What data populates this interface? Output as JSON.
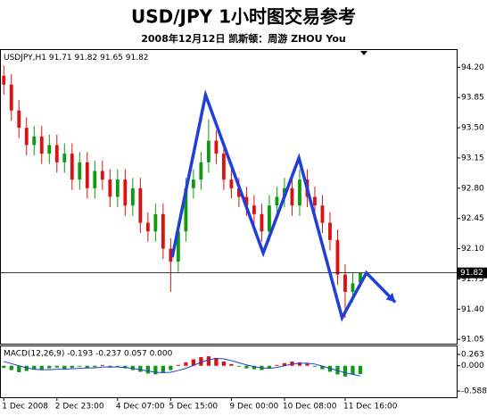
{
  "chart_data": {
    "type": "candlestick",
    "title": "USD/JPY 1小时图交易参考",
    "subtitle": "2008年12月12日  凯斯顿：周游 ZHOU You",
    "symbol": "USDJPY,H1",
    "open": [
      94.1,
      94.0,
      93.7,
      93.5,
      93.3,
      93.4,
      93.2,
      93.3,
      93.1,
      93.2,
      92.9,
      93.1,
      92.8,
      93.0,
      92.9,
      92.7,
      92.9,
      92.6,
      92.8,
      92.4,
      92.3,
      92.5,
      92.1,
      91.95,
      92.3,
      92.8,
      92.9,
      93.1,
      93.35,
      93.2,
      92.9,
      92.8,
      92.7,
      92.6,
      92.5,
      92.3,
      92.6,
      92.7,
      92.8,
      92.6,
      92.9,
      92.7,
      92.6,
      92.4,
      92.2,
      91.8,
      91.6,
      91.71
    ],
    "high": [
      94.22,
      94.12,
      93.82,
      93.62,
      93.52,
      93.52,
      93.42,
      93.42,
      93.32,
      93.32,
      93.22,
      93.22,
      93.12,
      93.12,
      93.02,
      93.02,
      93.02,
      92.92,
      92.92,
      92.52,
      92.62,
      92.62,
      92.22,
      92.42,
      92.92,
      93.02,
      93.22,
      93.6,
      93.47,
      93.32,
      93.02,
      92.92,
      92.82,
      92.72,
      92.62,
      92.72,
      92.82,
      92.92,
      92.92,
      93.02,
      93.02,
      92.82,
      92.72,
      92.52,
      92.32,
      91.92,
      91.82,
      91.82
    ],
    "low": [
      93.88,
      93.58,
      93.38,
      93.18,
      93.18,
      93.08,
      93.08,
      92.98,
      92.98,
      92.78,
      92.78,
      92.68,
      92.68,
      92.78,
      92.58,
      92.58,
      92.48,
      92.48,
      92.28,
      92.18,
      92.18,
      91.98,
      91.6,
      91.83,
      92.18,
      92.68,
      92.78,
      92.98,
      93.08,
      92.78,
      92.68,
      92.58,
      92.48,
      92.38,
      92.18,
      92.18,
      92.48,
      92.58,
      92.48,
      92.48,
      92.58,
      92.48,
      92.28,
      92.08,
      91.68,
      91.3,
      91.48,
      91.65
    ],
    "close": [
      94.0,
      93.7,
      93.5,
      93.3,
      93.4,
      93.2,
      93.3,
      93.1,
      93.2,
      92.9,
      93.1,
      92.8,
      93.0,
      92.9,
      92.7,
      92.9,
      92.6,
      92.8,
      92.4,
      92.3,
      92.5,
      92.1,
      91.95,
      92.3,
      92.8,
      92.9,
      93.1,
      93.35,
      93.2,
      92.9,
      92.8,
      92.7,
      92.6,
      92.5,
      92.3,
      92.6,
      92.7,
      92.8,
      92.6,
      92.9,
      92.7,
      92.6,
      92.4,
      92.2,
      91.8,
      91.6,
      91.7,
      91.82
    ],
    "up_color": "#119911",
    "down_color": "#dd1111",
    "xlim": [
      -0.5,
      59.7
    ],
    "ylim": [
      91.0,
      94.39
    ],
    "yticks": [
      {
        "value": 94.2,
        "label": "94.20"
      },
      93.85,
      {
        "value": 93.5,
        "label": "93.50"
      },
      93.15,
      {
        "value": 92.8,
        "label": "92.80"
      },
      92.45,
      {
        "value": 92.1,
        "label": "92.10"
      },
      91.75,
      {
        "value": 91.4,
        "label": "91.40"
      },
      91.05
    ],
    "xticks": [
      {
        "value": 0,
        "label": "1 Dec 2008"
      },
      {
        "value": 7,
        "label": "2 Dec 23:00"
      },
      {
        "value": 15,
        "label": "4 Dec 07:00"
      },
      {
        "value": 22,
        "label": "5 Dec 15:00"
      },
      {
        "value": 30,
        "label": "9 Dec 00:00"
      },
      {
        "value": 37,
        "label": "10 Dec 08:00"
      },
      {
        "value": 45,
        "label": "11 Dec 16:00"
      }
    ],
    "zigzag": {
      "color": "#1f3fd8",
      "x": [
        22.2,
        26.6,
        34.2,
        38.9,
        44.6,
        47.8,
        51.6
      ],
      "values": [
        92.0,
        93.88,
        92.05,
        93.15,
        91.3,
        91.82,
        91.48
      ]
    },
    "macd": {
      "label": "MACD(12,26,9) -0.193 -0.237 0.057 0.000",
      "ylim": [
        -0.73,
        0.45
      ],
      "yticks": [
        0.263,
        {
          "value": 0,
          "label": "0.000"
        },
        -0.588
      ],
      "pos_color": "#dd1111",
      "neg_color": "#119911",
      "signal_color": "#1f3fd8",
      "histogram": [
        -0.05,
        -0.1,
        -0.15,
        -0.12,
        -0.08,
        -0.1,
        -0.06,
        -0.04,
        -0.08,
        -0.05,
        -0.02,
        -0.06,
        -0.03,
        0.02,
        -0.04,
        -0.02,
        -0.06,
        -0.1,
        -0.14,
        -0.18,
        -0.2,
        -0.15,
        -0.1,
        0.02,
        0.08,
        0.15,
        0.2,
        0.22,
        0.18,
        0.1,
        0.04,
        -0.02,
        -0.06,
        -0.08,
        -0.1,
        -0.05,
        0.02,
        0.06,
        0.1,
        0.08,
        0.05,
        -0.02,
        -0.08,
        -0.14,
        -0.2,
        -0.25,
        -0.2,
        -0.193
      ],
      "signal": [
        0.1,
        0.05,
        0,
        -0.05,
        -0.08,
        -0.09,
        -0.09,
        -0.08,
        -0.08,
        -0.07,
        -0.06,
        -0.05,
        -0.05,
        -0.03,
        -0.03,
        -0.03,
        -0.04,
        -0.06,
        -0.09,
        -0.12,
        -0.15,
        -0.16,
        -0.15,
        -0.11,
        -0.06,
        0.01,
        0.08,
        0.14,
        0.17,
        0.16,
        0.12,
        0.07,
        0.02,
        -0.02,
        -0.05,
        -0.06,
        -0.04,
        0,
        0.04,
        0.06,
        0.06,
        0.04,
        -0.01,
        -0.06,
        -0.11,
        -0.16,
        -0.2,
        -0.237
      ]
    }
  }
}
